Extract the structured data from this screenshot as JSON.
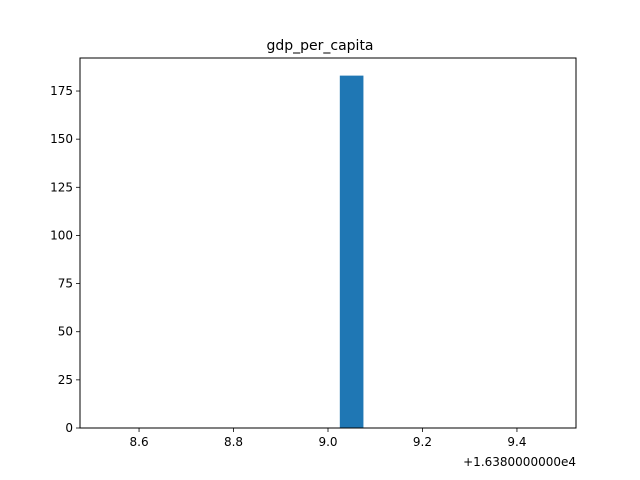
{
  "chart_data": {
    "type": "bar",
    "title": "gdp_per_capita",
    "xlabel": "",
    "ylabel": "",
    "x_offset_label": "+1.6380000000e4",
    "bars": [
      {
        "x_start": 9.025,
        "x_end": 9.075,
        "value": 183
      }
    ],
    "xlim": [
      8.475,
      9.525
    ],
    "ylim": [
      0,
      192.15
    ],
    "x_ticks": [
      8.6,
      8.8,
      9.0,
      9.2,
      9.4
    ],
    "x_tick_labels": [
      "8.6",
      "8.8",
      "9.0",
      "9.2",
      "9.4"
    ],
    "y_ticks": [
      0,
      25,
      50,
      75,
      100,
      125,
      150,
      175
    ],
    "y_tick_labels": [
      "0",
      "25",
      "50",
      "75",
      "100",
      "125",
      "150",
      "175"
    ],
    "grid": false,
    "bar_color": "#1f77b4"
  }
}
